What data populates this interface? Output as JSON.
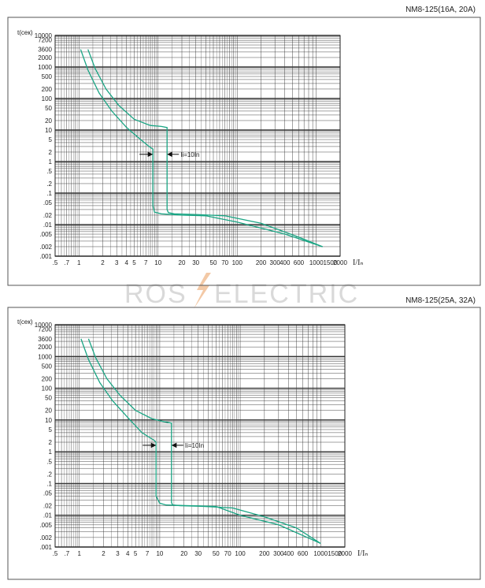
{
  "watermark": {
    "left_text": "ROS",
    "right_text": "ELECTRIC",
    "bolt_color": "#f3c9a6",
    "text_color": "#d9d9d9"
  },
  "colors": {
    "curve": "#1aa584",
    "grid": "#333333",
    "frame": "#555555"
  },
  "chart_data": [
    {
      "type": "line",
      "title": "NM8-125(16A, 20A)",
      "ylabel": "t(сек)",
      "xlabel": "I/Iₙ",
      "x_scale": "log",
      "y_scale": "log",
      "xlim": [
        0.5,
        2000
      ],
      "ylim": [
        0.001,
        10000
      ],
      "x_tick_labels": [
        ".5",
        ".7",
        "1",
        "2",
        "3",
        "4",
        "5",
        "7",
        "10",
        "20",
        "30",
        "50",
        "70",
        "100",
        "200",
        "300",
        "400",
        "600",
        "1000",
        "1500",
        "2000"
      ],
      "x_tick_values": [
        0.5,
        0.7,
        1,
        2,
        3,
        4,
        5,
        7,
        10,
        20,
        30,
        50,
        70,
        100,
        200,
        300,
        400,
        600,
        1000,
        1500,
        2000
      ],
      "y_tick_labels": [
        "10000",
        "7200",
        "3600",
        "2000",
        "1000",
        "500",
        "200",
        "100",
        "50",
        "20",
        "10",
        "5",
        "2",
        "1",
        ".5",
        ".2",
        ".1",
        ".05",
        ".02",
        ".01",
        ".005",
        ".002",
        ".001"
      ],
      "y_tick_values": [
        10000,
        7200,
        3600,
        2000,
        1000,
        500,
        200,
        100,
        50,
        20,
        10,
        5,
        2,
        1,
        0.5,
        0.2,
        0.1,
        0.05,
        0.02,
        0.01,
        0.005,
        0.002,
        0.001
      ],
      "annotation": {
        "text": "Ii=10In",
        "x": 13,
        "y": 1.7
      },
      "series": [
        {
          "x": [
            1.05,
            1.3,
            1.8,
            2.6,
            4,
            6,
            8,
            8.6,
            8.6,
            9,
            11,
            20,
            40,
            100,
            400,
            1200
          ],
          "y": [
            3600,
            800,
            150,
            40,
            12,
            5,
            2.8,
            2.5,
            0.04,
            0.025,
            0.022,
            0.02,
            0.019,
            0.012,
            0.005,
            0.002
          ]
        },
        {
          "x": [
            1.3,
            1.6,
            2.2,
            3.2,
            5,
            8,
            11,
            13,
            13,
            13.5,
            16,
            30,
            70,
            200,
            600,
            1200
          ],
          "y": [
            3600,
            900,
            200,
            60,
            22,
            14,
            13,
            12,
            0.03,
            0.024,
            0.022,
            0.021,
            0.019,
            0.011,
            0.004,
            0.002
          ]
        }
      ]
    },
    {
      "type": "line",
      "title": "NM8-125(25A, 32A)",
      "ylabel": "t(сек)",
      "xlabel": "I/Iₙ",
      "x_scale": "log",
      "y_scale": "log",
      "xlim": [
        0.5,
        2000
      ],
      "ylim": [
        0.001,
        10000
      ],
      "x_tick_labels": [
        ".5",
        ".7",
        "1",
        "2",
        "3",
        "4",
        "5",
        "7",
        "10",
        "20",
        "30",
        "50",
        "70",
        "100",
        "200",
        "300",
        "400",
        "600",
        "1000",
        "1500",
        "2000"
      ],
      "x_tick_values": [
        0.5,
        0.7,
        1,
        2,
        3,
        4,
        5,
        7,
        10,
        20,
        30,
        50,
        70,
        100,
        200,
        300,
        400,
        600,
        1000,
        1500,
        2000
      ],
      "y_tick_labels": [
        "10000",
        "7200",
        "3600",
        "2000",
        "1000",
        "500",
        "200",
        "100",
        "50",
        "20",
        "10",
        "5",
        "2",
        "1",
        ".5",
        ".2",
        ".1",
        ".05",
        ".02",
        ".01",
        ".005",
        ".002",
        ".001"
      ],
      "y_tick_values": [
        10000,
        7200,
        3600,
        2000,
        1000,
        500,
        200,
        100,
        50,
        20,
        10,
        5,
        2,
        1,
        0.5,
        0.2,
        0.1,
        0.05,
        0.02,
        0.01,
        0.005,
        0.002,
        0.001
      ],
      "annotation": {
        "text": "Ii=10In",
        "x": 14,
        "y": 1.6
      },
      "series": [
        {
          "x": [
            1.05,
            1.3,
            1.8,
            2.6,
            4,
            6,
            8.5,
            9,
            9,
            10,
            12,
            25,
            50,
            100,
            300,
            1000
          ],
          "y": [
            3600,
            800,
            150,
            40,
            12,
            4,
            2.3,
            2.0,
            0.04,
            0.024,
            0.021,
            0.02,
            0.019,
            0.01,
            0.005,
            0.0013
          ]
        },
        {
          "x": [
            1.3,
            1.6,
            2.2,
            3.2,
            5,
            8,
            11,
            14,
            14,
            14.5,
            18,
            35,
            80,
            200,
            500,
            1000
          ],
          "y": [
            3600,
            900,
            200,
            60,
            20,
            11,
            9,
            8,
            0.025,
            0.021,
            0.02,
            0.019,
            0.017,
            0.009,
            0.004,
            0.0013
          ]
        }
      ]
    }
  ]
}
